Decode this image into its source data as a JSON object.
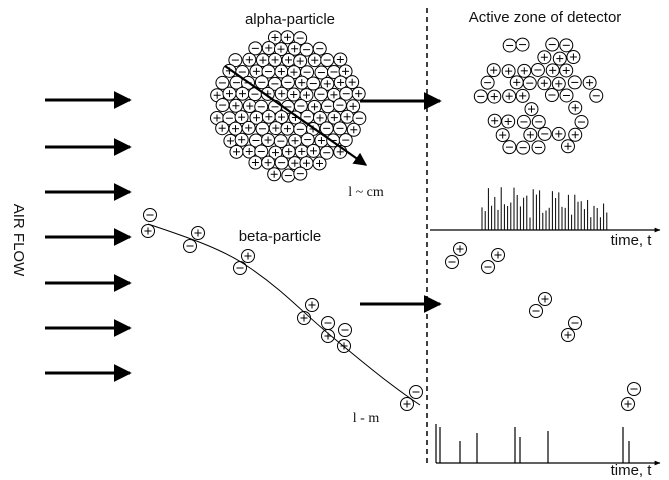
{
  "air_flow": "AIR FLOW",
  "alpha": {
    "title": "alpha-particle",
    "length": "l ~ cm"
  },
  "beta": {
    "title": "beta-particle",
    "length": "l - m"
  },
  "detector": {
    "title": "Active zone of detector",
    "time_axis_top": "time, t",
    "time_axis_bottom": "time, t"
  }
}
